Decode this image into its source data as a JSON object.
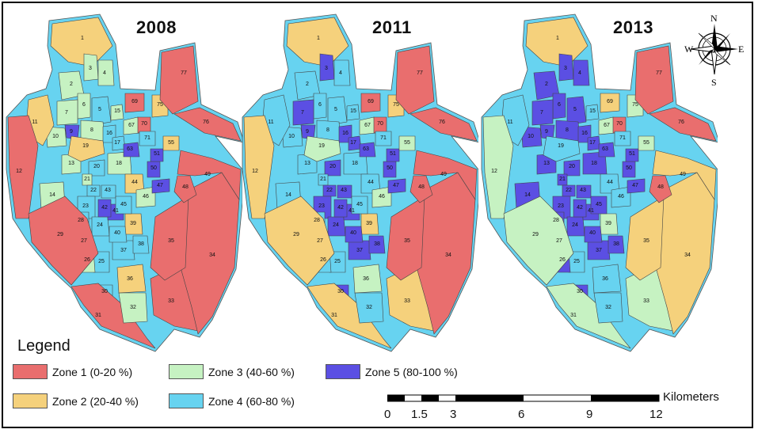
{
  "maps": [
    {
      "year": "2008",
      "zones": {
        "1": 2,
        "2": 3,
        "3": 3,
        "4": 3,
        "5": 4,
        "6": 3,
        "7": 3,
        "8": 3,
        "9": 5,
        "10": 3,
        "11": 2,
        "12": 1,
        "13": 3,
        "14": 3,
        "15": 3,
        "16": 4,
        "17": 4,
        "18": 3,
        "19": 2,
        "20": 4,
        "21": 3,
        "22": 4,
        "23": 4,
        "24": 4,
        "25": 4,
        "26": 3,
        "27": 3,
        "28": 4,
        "29": 1,
        "30": 4,
        "31": 1,
        "32": 3,
        "33": 1,
        "34": 1,
        "35": 1,
        "36": 2,
        "37": 4,
        "38": 4,
        "39": 2,
        "40": 4,
        "41": 5,
        "42": 5,
        "43": 4,
        "44": 2,
        "45": 4,
        "46": 3,
        "47": 5,
        "48": 1,
        "49": 1,
        "50": 5,
        "51": 5,
        "55": 2,
        "63": 5,
        "67": 3,
        "69": 1,
        "70": 1,
        "71": 4,
        "75": 2,
        "76": 1,
        "77": 1
      }
    },
    {
      "year": "2011",
      "zones": {
        "1": 2,
        "2": 4,
        "3": 5,
        "4": 4,
        "5": 4,
        "6": 4,
        "7": 5,
        "8": 4,
        "9": 5,
        "10": 4,
        "11": 4,
        "12": 2,
        "13": 4,
        "14": 4,
        "15": 4,
        "16": 5,
        "17": 5,
        "18": 4,
        "19": 3,
        "20": 5,
        "21": 4,
        "22": 5,
        "23": 5,
        "24": 5,
        "25": 4,
        "26": 4,
        "27": 4,
        "28": 4,
        "29": 2,
        "30": 5,
        "31": 2,
        "32": 4,
        "33": 2,
        "34": 1,
        "35": 1,
        "36": 3,
        "37": 5,
        "38": 5,
        "39": 2,
        "40": 5,
        "41": 5,
        "42": 5,
        "43": 5,
        "44": 4,
        "45": 4,
        "46": 3,
        "47": 5,
        "48": 1,
        "49": 1,
        "50": 5,
        "51": 5,
        "55": 3,
        "63": 5,
        "67": 3,
        "69": 1,
        "70": 1,
        "71": 4,
        "75": 2,
        "76": 1,
        "77": 1
      }
    },
    {
      "year": "2013",
      "zones": {
        "1": 2,
        "2": 5,
        "3": 5,
        "4": 5,
        "5": 5,
        "6": 5,
        "7": 5,
        "8": 5,
        "9": 5,
        "10": 5,
        "11": 4,
        "12": 3,
        "13": 5,
        "14": 5,
        "15": 4,
        "16": 5,
        "17": 5,
        "18": 5,
        "19": 4,
        "20": 5,
        "21": 5,
        "22": 5,
        "23": 5,
        "24": 5,
        "25": 4,
        "26": 5,
        "27": 5,
        "28": 5,
        "29": 3,
        "30": 5,
        "31": 3,
        "32": 4,
        "33": 3,
        "34": 2,
        "35": 2,
        "36": 4,
        "37": 5,
        "38": 5,
        "39": 3,
        "40": 5,
        "41": 5,
        "42": 5,
        "43": 5,
        "44": 4,
        "45": 5,
        "46": 4,
        "47": 5,
        "48": 1,
        "49": 2,
        "50": 5,
        "51": 5,
        "55": 3,
        "63": 5,
        "67": 3,
        "69": 2,
        "70": 1,
        "71": 4,
        "75": 3,
        "76": 1,
        "77": 1
      }
    }
  ],
  "legend": {
    "title": "Legend",
    "items": [
      {
        "label": "Zone 1 (0-20 %)",
        "color": "#e96e6e"
      },
      {
        "label": "Zone 2 (20-40 %)",
        "color": "#f5d17c"
      },
      {
        "label": "Zone 3 (40-60 %)",
        "color": "#c6f2c2"
      },
      {
        "label": "Zone 4 (60-80 %)",
        "color": "#67d3f0"
      },
      {
        "label": "Zone 5 (80-100 %)",
        "color": "#5b4fe3"
      }
    ]
  },
  "north_arrow": {
    "n": "N",
    "s": "S",
    "e": "E",
    "w": "W"
  },
  "scale": {
    "unit": "Kilometers",
    "ticks": [
      "0",
      "1.5",
      "3",
      "6",
      "9",
      "12"
    ]
  }
}
